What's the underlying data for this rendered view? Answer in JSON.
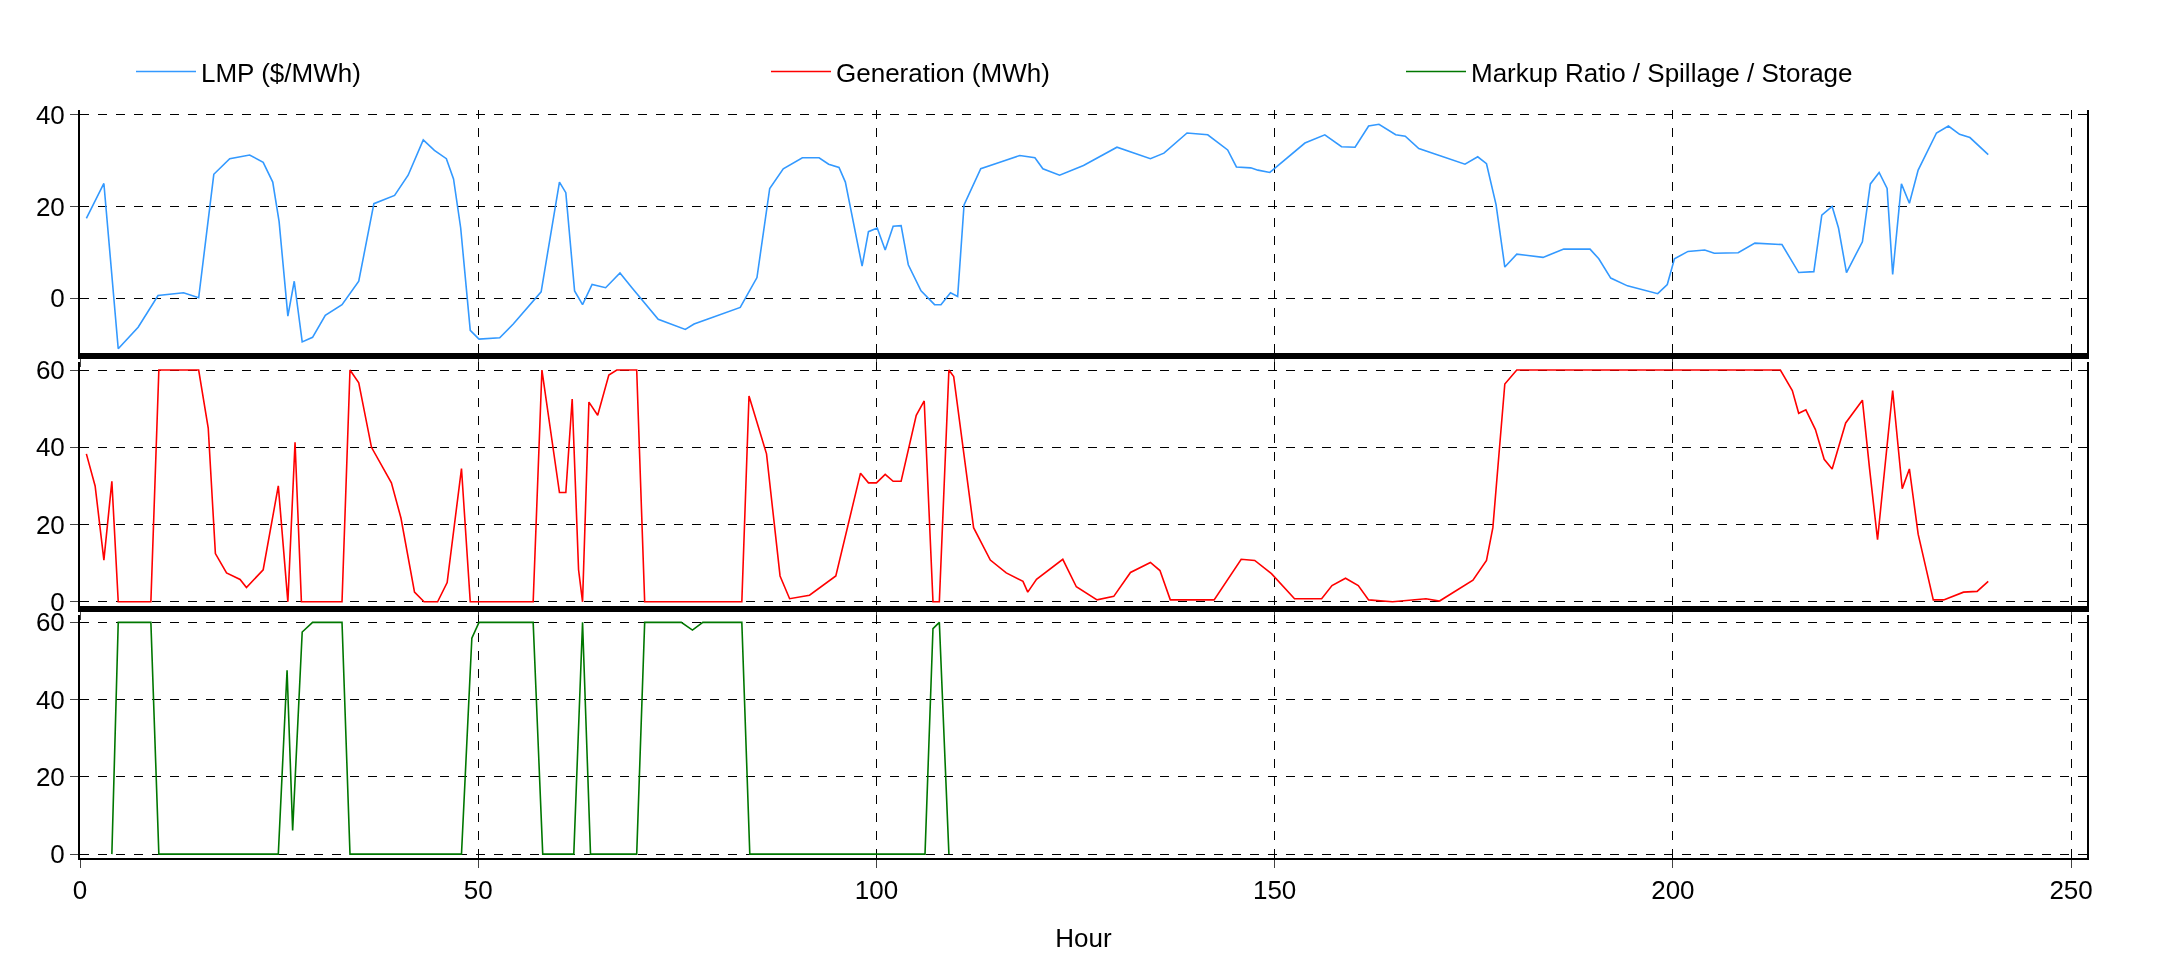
{
  "chart_data": [
    {
      "type": "line",
      "xlim": [
        0,
        252
      ],
      "xticks": [
        0,
        50,
        100,
        150,
        200,
        250
      ],
      "ylim": [
        -12,
        41
      ],
      "yticks": [
        0,
        20,
        40
      ],
      "grid": true,
      "legend": "top",
      "tick_labels": "y",
      "series": [
        {
          "name": "LMP ($/MWh)",
          "color": "#3399ff",
          "x": [
            0.8,
            3,
            4.8,
            7.3,
            9.8,
            13,
            14.9,
            16.8,
            18.8,
            21.3,
            23,
            24.2,
            25,
            26.1,
            26.9,
            27.9,
            29.2,
            30.8,
            32.9,
            35,
            36.9,
            39.5,
            41.2,
            43.1,
            44.5,
            46,
            46.9,
            47.8,
            49,
            50.1,
            52.7,
            54.4,
            57.9,
            60.2,
            61,
            62.1,
            63.1,
            64.3,
            66,
            67.8,
            69.3,
            72.6,
            76,
            77.1,
            79.2,
            82.9,
            85,
            86.6,
            88.3,
            90.7,
            92.8,
            94,
            95.3,
            96.1,
            98.2,
            99,
            100.1,
            101.1,
            102.1,
            103.1,
            104,
            105.6,
            107.3,
            108.1,
            109.3,
            110.2,
            111,
            113.1,
            115.5,
            118,
            119.9,
            120.9,
            123,
            126,
            130.2,
            134.4,
            136.1,
            139,
            141.6,
            144.1,
            145.2,
            147,
            147.9,
            149.4,
            153.8,
            156.3,
            158.4,
            160.1,
            161.8,
            163.1,
            165.2,
            166.4,
            168.1,
            173.9,
            175.5,
            176.6,
            177.8,
            178.9,
            180.4,
            183.7,
            186.3,
            189.6,
            190.7,
            192.2,
            194.3,
            198.1,
            199.3,
            200.2,
            201.9,
            204,
            205.2,
            208.2,
            210.3,
            213.7,
            215.8,
            217.7,
            218.7,
            220,
            220.8,
            221.8,
            223.8,
            224.8,
            225.9,
            226.9,
            227.6,
            228.7,
            229.7,
            230.8,
            233.1,
            234.6,
            236,
            237.3,
            239.6
          ],
          "values": [
            17.4,
            25,
            -11,
            -6.3,
            0.6,
            1.2,
            0.1,
            27,
            30.4,
            31.2,
            29.6,
            25.3,
            16.7,
            -3.9,
            3.7,
            -9.5,
            -8.5,
            -3.7,
            -1.4,
            3.7,
            20.6,
            22.4,
            26.8,
            34.5,
            32.2,
            30.4,
            26,
            15.3,
            -7,
            -8.9,
            -8.6,
            -5.6,
            1.4,
            25.3,
            23,
            1.6,
            -1.4,
            3,
            2.3,
            5.5,
            2.3,
            -4.6,
            -6.8,
            -5.6,
            -4.3,
            -2,
            4.5,
            23.9,
            28.2,
            30.6,
            30.6,
            29.2,
            28.5,
            25.3,
            7,
            14.5,
            15.3,
            10.5,
            15.7,
            15.8,
            7.3,
            1.6,
            -1.4,
            -1.4,
            1.2,
            0.4,
            20.3,
            28.2,
            29.6,
            31.1,
            30.6,
            28.2,
            26.8,
            28.9,
            32.9,
            30.4,
            31.6,
            36,
            35.6,
            32.3,
            28.6,
            28.4,
            27.9,
            27.4,
            33.8,
            35.6,
            33,
            32.9,
            37.5,
            37.9,
            35.6,
            35.3,
            32.6,
            29.2,
            30.8,
            29.3,
            20.4,
            6.8,
            9.6,
            8.9,
            10.7,
            10.7,
            8.6,
            4.4,
            2.7,
            1,
            3,
            8.6,
            10.2,
            10.5,
            9.8,
            9.9,
            12,
            11.7,
            5.6,
            5.8,
            18.1,
            20,
            15.3,
            5.6,
            12.3,
            24.9,
            27.4,
            23.9,
            5.2,
            24.9,
            20.7,
            27.9,
            36,
            37.5,
            35.7,
            35,
            31.3
          ]
        }
      ]
    },
    {
      "type": "line",
      "xlim": [
        0,
        252
      ],
      "xticks": [
        0,
        50,
        100,
        150,
        200,
        250
      ],
      "ylim": [
        -1,
        62
      ],
      "yticks": [
        0,
        20,
        40,
        60
      ],
      "grid": true,
      "legend": "top",
      "tick_labels": "y",
      "series": [
        {
          "name": "Generation (MWh)",
          "color": "#ff0000",
          "x": [
            0.8,
            1.9,
            3,
            4,
            4.8,
            8.9,
            9.9,
            14.9,
            16.1,
            17,
            18.4,
            20.1,
            20.9,
            23,
            24.9,
            26.1,
            27,
            27.8,
            32.9,
            33.9,
            35,
            36.6,
            39.1,
            40.3,
            42,
            43.2,
            44.9,
            46.1,
            47.9,
            49,
            56.9,
            58,
            60.2,
            61,
            61.8,
            62.6,
            63.1,
            63.9,
            65,
            66.4,
            67.4,
            69.9,
            70.9,
            83.1,
            84,
            86.2,
            87.9,
            89.1,
            91.6,
            94.9,
            98,
            99,
            100,
            101.1,
            102.1,
            103.1,
            105,
            106,
            107.1,
            107.9,
            109.1,
            109.7,
            112.2,
            114.3,
            116.3,
            118.4,
            119,
            120.1,
            123.4,
            125.1,
            127.7,
            129.8,
            131.9,
            134.4,
            135.6,
            136.9,
            142.4,
            145.8,
            147.5,
            149.6,
            152.5,
            155.9,
            157.2,
            158.9,
            160.5,
            161.8,
            164.8,
            169,
            170.7,
            174.9,
            176.6,
            177.4,
            178.9,
            180.4,
            213.5,
            215,
            215.8,
            216.7,
            217.9,
            219,
            220,
            221.7,
            223.8,
            224.7,
            225.7,
            227.6,
            228.8,
            229.7,
            230.8,
            232.7,
            234,
            236.5,
            238.2,
            239.6
          ],
          "values": [
            38.3,
            30,
            10.8,
            31.2,
            0,
            0,
            60,
            60,
            45,
            12.5,
            7.5,
            5.8,
            3.7,
            8.3,
            30,
            0,
            41.3,
            0,
            0,
            60,
            56.7,
            40,
            30.8,
            21.7,
            2.5,
            0,
            0,
            5,
            34.5,
            0,
            0,
            60,
            28.3,
            28.3,
            52.5,
            8.3,
            0,
            51.7,
            48.3,
            58.7,
            60,
            60,
            0,
            0,
            53.3,
            38.3,
            6.7,
            0.8,
            1.7,
            6.7,
            33.3,
            30.8,
            30.8,
            33,
            31.2,
            31.2,
            48.3,
            52,
            0,
            0,
            60,
            58.3,
            19.2,
            10.8,
            7.5,
            5.3,
            2.5,
            5.8,
            11,
            3.9,
            0.5,
            1.4,
            7.6,
            10.2,
            8.1,
            0.5,
            0.5,
            11,
            10.7,
            7.3,
            0.8,
            0.8,
            4.2,
            6.1,
            4.2,
            0.5,
            0,
            0.8,
            0.2,
            5.6,
            10.7,
            19.2,
            56.4,
            60,
            60,
            54.7,
            48.8,
            49.7,
            44.6,
            36.9,
            34.4,
            46.3,
            52.2,
            34.4,
            16.1,
            54.7,
            29.3,
            34.4,
            17.5,
            0.5,
            0.5,
            2.5,
            2.7,
            5.3
          ]
        }
      ]
    },
    {
      "type": "line",
      "xlabel": "Hour",
      "xlim": [
        0,
        252
      ],
      "xticks": [
        0,
        50,
        100,
        150,
        200,
        250
      ],
      "ylim": [
        -1,
        62
      ],
      "yticks": [
        0,
        20,
        40,
        60
      ],
      "grid": true,
      "legend": "top",
      "series": [
        {
          "name": "Markup Ratio / Spillage / Storage",
          "color": "#007700",
          "x": [
            4,
            4.8,
            8.9,
            9.9,
            24.9,
            26,
            26.7,
            27.9,
            29.2,
            32.9,
            33.9,
            47.9,
            49.2,
            50.1,
            56.9,
            58.1,
            62,
            63.1,
            64.1,
            69.9,
            70.9,
            75.5,
            76.9,
            78.2,
            83.1,
            84.1,
            106.1,
            107.1,
            107.9,
            109.1
          ],
          "values": [
            0,
            60,
            60,
            0,
            0,
            47.6,
            6.1,
            57.5,
            60,
            60,
            0,
            0,
            55.9,
            60,
            60,
            0,
            0,
            60,
            0,
            0,
            60,
            60,
            58,
            60,
            60,
            0,
            0,
            58.4,
            60,
            0
          ]
        }
      ]
    }
  ]
}
